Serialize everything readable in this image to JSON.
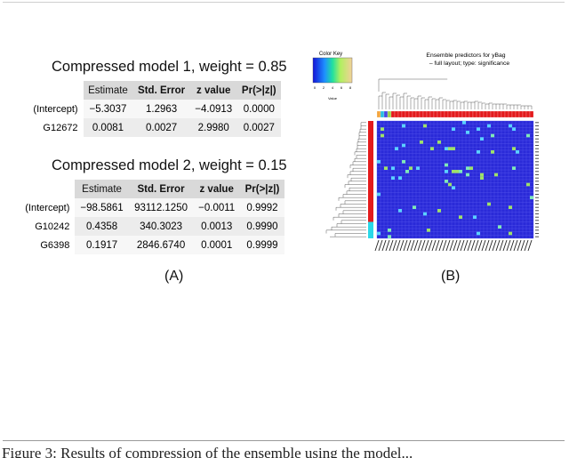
{
  "model1": {
    "title": "Compressed model 1, weight = 0.85",
    "headers": [
      "Estimate",
      "Std. Error",
      "z value",
      "Pr(>|z|)"
    ],
    "rows": [
      {
        "name": "(Intercept)",
        "cells": [
          "−5.3037",
          "1.2963",
          "−4.0913",
          "0.0000"
        ]
      },
      {
        "name": "G12672",
        "cells": [
          "0.0081",
          "0.0027",
          "2.9980",
          "0.0027"
        ]
      }
    ]
  },
  "model2": {
    "title": "Compressed model 2, weight = 0.15",
    "headers": [
      "Estimate",
      "Std. Error",
      "z value",
      "Pr(>|z|)"
    ],
    "rows": [
      {
        "name": "(Intercept)",
        "cells": [
          "−98.5861",
          "93112.1250",
          "−0.0011",
          "0.9992"
        ]
      },
      {
        "name": "G10242",
        "cells": [
          "0.4358",
          "340.3023",
          "0.0013",
          "0.9990"
        ]
      },
      {
        "name": "G6398",
        "cells": [
          "0.1917",
          "2846.6740",
          "0.0001",
          "0.9999"
        ]
      }
    ]
  },
  "heatmap": {
    "color_key_title": "Color Key",
    "color_key_ticks": [
      "0",
      "2",
      "4",
      "6",
      "8"
    ],
    "color_key_xlabel": "Value",
    "title_line1": "Ensemble predictors for yBag",
    "title_line2": "– full layout; type: significance",
    "colors": {
      "cell": "#2a2ad8",
      "grid": "#5a5af0",
      "side_red": "#e31a1c",
      "side_cyan": "#29d8e8",
      "highlight": "#7fe8b8"
    }
  },
  "labels": {
    "panel_a": "(A)",
    "panel_b": "(B)"
  },
  "caption": "Figure 3: Results of compression of the ensemble using the model..."
}
